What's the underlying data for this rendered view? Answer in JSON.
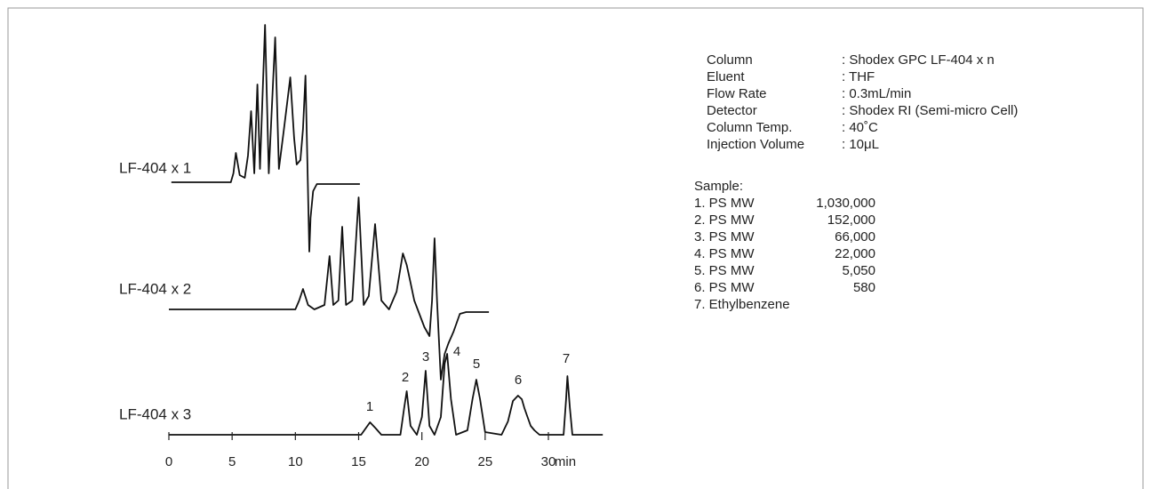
{
  "chart_data": {
    "type": "line",
    "xlabel": "min",
    "xlim": [
      0,
      30
    ],
    "xticks": [
      0,
      5,
      10,
      15,
      20,
      25,
      30
    ],
    "series": [
      {
        "name": "LF-404 x 1",
        "color": "#111111",
        "x": [
          0.2,
          4.9,
          5.1,
          5.3,
          5.6,
          6.0,
          6.25,
          6.5,
          6.75,
          7.0,
          7.2,
          7.6,
          7.9,
          8.4,
          8.7,
          9.1,
          9.6,
          9.9,
          10.1,
          10.4,
          10.6,
          10.8,
          10.95,
          11.1,
          11.2,
          11.4,
          11.7,
          15.1
        ],
        "values": [
          0,
          0,
          10,
          33,
          8,
          5,
          30,
          80,
          10,
          110,
          15,
          177,
          10,
          163,
          15,
          60,
          118,
          50,
          20,
          25,
          60,
          120,
          20,
          -78,
          -40,
          -10,
          -2,
          -2
        ]
      },
      {
        "name": "LF-404 x 2",
        "color": "#111111",
        "x": [
          0,
          10.0,
          10.3,
          10.6,
          11.0,
          11.5,
          12.3,
          12.7,
          13.0,
          13.4,
          13.7,
          14.0,
          14.5,
          15.0,
          15.4,
          15.8,
          16.3,
          16.8,
          17.4,
          18.0,
          18.5,
          18.8,
          19.1,
          19.4,
          19.8,
          20.2,
          20.6,
          20.8,
          21.0,
          21.2,
          21.5,
          21.8,
          22.1,
          22.5,
          23.0,
          23.5,
          25.3
        ],
        "values": [
          0,
          0,
          10,
          23,
          5,
          0,
          5,
          60,
          5,
          10,
          93,
          5,
          10,
          126,
          5,
          15,
          96,
          10,
          0,
          20,
          63,
          50,
          30,
          10,
          -5,
          -20,
          -30,
          10,
          80,
          10,
          -79,
          -50,
          -38,
          -25,
          -5,
          -3,
          -3
        ]
      },
      {
        "name": "LF-404 x 3",
        "color": "#111111",
        "x": [
          0,
          15.2,
          15.6,
          15.9,
          16.3,
          16.8,
          18.3,
          18.6,
          18.8,
          19.1,
          19.6,
          20.0,
          20.3,
          20.6,
          21.0,
          21.5,
          21.8,
          22.0,
          22.3,
          22.7,
          23.6,
          24.0,
          24.3,
          24.6,
          25.0,
          26.3,
          26.8,
          27.2,
          27.6,
          27.9,
          28.1,
          28.3,
          28.6,
          28.9,
          29.3,
          31.2,
          31.4,
          31.5,
          31.7,
          31.9,
          34.3
        ],
        "values": [
          0,
          0,
          8,
          14,
          8,
          0,
          0,
          30,
          49,
          10,
          0,
          20,
          72,
          10,
          0,
          20,
          80,
          91,
          40,
          0,
          5,
          40,
          62,
          40,
          3,
          0,
          15,
          38,
          44,
          40,
          30,
          22,
          10,
          5,
          0,
          0,
          40,
          66,
          30,
          0,
          0
        ]
      }
    ],
    "peak_labels": [
      "1",
      "2",
      "3",
      "4",
      "5",
      "6",
      "7"
    ]
  },
  "conditions": [
    {
      "label": "Column",
      "value": ": Shodex GPC LF-404 x n"
    },
    {
      "label": "Eluent",
      "value": ": THF"
    },
    {
      "label": "Flow Rate",
      "value": ": 0.3mL/min"
    },
    {
      "label": "Detector",
      "value": ": Shodex RI (Semi-micro Cell)"
    },
    {
      "label": "Column Temp.",
      "value": ": 40˚C"
    },
    {
      "label": "Injection Volume",
      "value": ": 10μL"
    }
  ],
  "sample": {
    "title": "Sample:",
    "items": [
      {
        "name": "1. PS MW",
        "mw": "1,030,000"
      },
      {
        "name": "2. PS MW",
        "mw": "152,000"
      },
      {
        "name": "3. PS MW",
        "mw": "66,000"
      },
      {
        "name": "4. PS MW",
        "mw": "22,000"
      },
      {
        "name": "5. PS MW",
        "mw": "5,050"
      },
      {
        "name": "6. PS MW",
        "mw": "580"
      },
      {
        "name": "7. Ethylbenzene",
        "mw": null
      }
    ]
  }
}
